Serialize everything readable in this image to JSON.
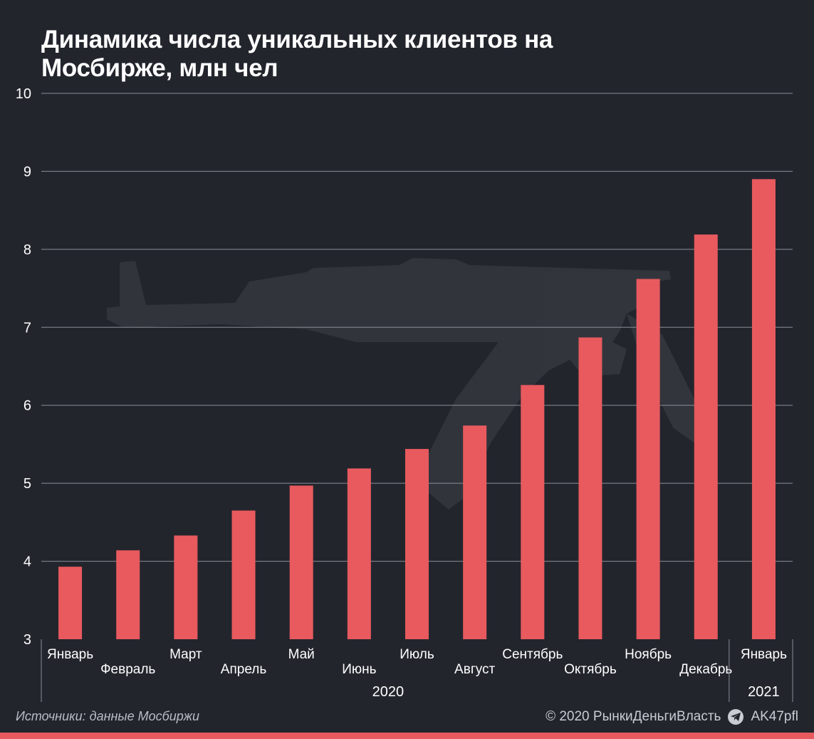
{
  "title": "Динамика числа уникальных клиентов на Мосбирже, млн чел",
  "footer": {
    "source": "Источники: данные Мосбиржи",
    "copyright": "© 2020  РынкиДеньгиВласть",
    "channel": "AK47pfl",
    "channel_icon": "telegram-icon"
  },
  "colors": {
    "background": "#23252d",
    "bar": "#e85a5e",
    "grid": "#8a8d96",
    "text": "#ffffff"
  },
  "chart_data": {
    "type": "bar",
    "title": "Динамика числа уникальных клиентов на Мосбирже, млн чел",
    "categories": [
      "Январь",
      "Февраль",
      "Март",
      "Апрель",
      "Май",
      "Июнь",
      "Июль",
      "Август",
      "Сентябрь",
      "Октябрь",
      "Ноябрь",
      "Декабрь",
      "Январь"
    ],
    "values": [
      3.93,
      4.14,
      4.33,
      4.65,
      4.97,
      5.19,
      5.44,
      5.74,
      6.26,
      6.87,
      7.62,
      8.19,
      8.9
    ],
    "groups": [
      {
        "label": "2020",
        "from": 0,
        "to": 11
      },
      {
        "label": "2021",
        "from": 12,
        "to": 12
      }
    ],
    "ylim": [
      3,
      10
    ],
    "yticks": [
      3,
      4,
      5,
      6,
      7,
      8,
      9,
      10
    ],
    "grid": true,
    "xlabel": "",
    "ylabel": ""
  }
}
